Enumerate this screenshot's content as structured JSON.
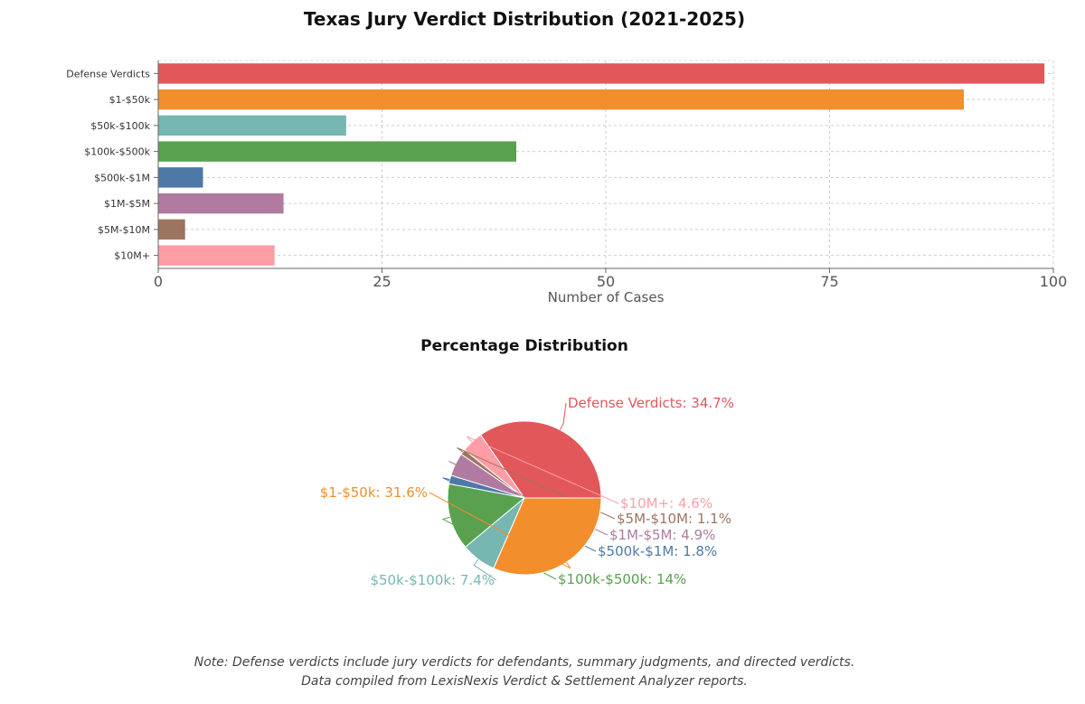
{
  "chart_data": [
    {
      "type": "bar",
      "orientation": "horizontal",
      "title": "Texas Jury Verdict Distribution (2021-2025)",
      "xlabel": "Number of Cases",
      "ylabel": "",
      "xlim": [
        0,
        100
      ],
      "xticks": [
        "0",
        "25",
        "50",
        "75",
        "100"
      ],
      "grid": true,
      "categories": [
        "Defense Verdicts",
        "$1-$50k",
        "$50k-$100k",
        "$100k-$500k",
        "$500k-$1M",
        "$1M-$5M",
        "$5M-$10M",
        "$10M+"
      ],
      "values": [
        99,
        90,
        21,
        40,
        5,
        14,
        3,
        13
      ],
      "colors": [
        "#e1575a",
        "#f28e2c",
        "#76b7b2",
        "#59a14f",
        "#4e79a7",
        "#b07aa1",
        "#9c755f",
        "#ff9da7"
      ]
    },
    {
      "type": "pie",
      "title": "Percentage Distribution",
      "slices": [
        {
          "label": "Defense Verdicts",
          "value": 34.7,
          "display": "Defense Verdicts: 34.7%",
          "color": "#e1575a"
        },
        {
          "label": "$10M+",
          "value": 4.6,
          "display": "$10M+: 4.6%",
          "color": "#ff9da7"
        },
        {
          "label": "$5M-$10M",
          "value": 1.1,
          "display": "$5M-$10M: 1.1%",
          "color": "#9c755f"
        },
        {
          "label": "$1M-$5M",
          "value": 4.9,
          "display": "$1M-$5M: 4.9%",
          "color": "#b07aa1"
        },
        {
          "label": "$500k-$1M",
          "value": 1.8,
          "display": "$500k-$1M: 1.8%",
          "color": "#4e79a7"
        },
        {
          "label": "$100k-$500k",
          "value": 14,
          "display": "$100k-$500k: 14%",
          "color": "#59a14f"
        },
        {
          "label": "$50k-$100k",
          "value": 7.4,
          "display": "$50k-$100k: 7.4%",
          "color": "#76b7b2"
        },
        {
          "label": "$1-$50k",
          "value": 31.6,
          "display": "$1-$50k: 31.6%",
          "color": "#f28e2c"
        }
      ]
    }
  ],
  "note": {
    "line1": "Note: Defense verdicts include jury verdicts for defendants, summary judgments, and directed verdicts.",
    "line2": "Data compiled from LexisNexis Verdict & Settlement Analyzer reports."
  }
}
